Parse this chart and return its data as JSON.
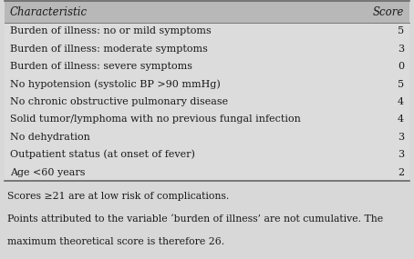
{
  "header": [
    "Characteristic",
    "Score"
  ],
  "rows": [
    [
      "Burden of illness: no or mild symptoms",
      "5"
    ],
    [
      "Burden of illness: moderate symptoms",
      "3"
    ],
    [
      "Burden of illness: severe symptoms",
      "0"
    ],
    [
      "No hypotension (systolic BP >90 mmHg)",
      "5"
    ],
    [
      "No chronic obstructive pulmonary disease",
      "4"
    ],
    [
      "Solid tumor/lymphoma with no previous fungal infection",
      "4"
    ],
    [
      "No dehydration",
      "3"
    ],
    [
      "Outpatient status (at onset of fever)",
      "3"
    ],
    [
      "Age <60 years",
      "2"
    ]
  ],
  "footnotes": [
    "Scores ≥21 are at low risk of complications.",
    "Points attributed to the variable ‘burden of illness’ are not cumulative. The",
    "maximum theoretical score is therefore 26."
  ],
  "header_bg": "#b8b8b8",
  "table_bg": "#dcdcdc",
  "page_bg": "#d8d8d8",
  "footnote_bg": "#d0d0d0",
  "border_color": "#666666",
  "text_color": "#1a1a1a",
  "header_font_size": 8.5,
  "row_font_size": 8.0,
  "footnote_font_size": 7.8,
  "fig_width": 4.54,
  "fig_height": 2.85,
  "dpi": 100
}
